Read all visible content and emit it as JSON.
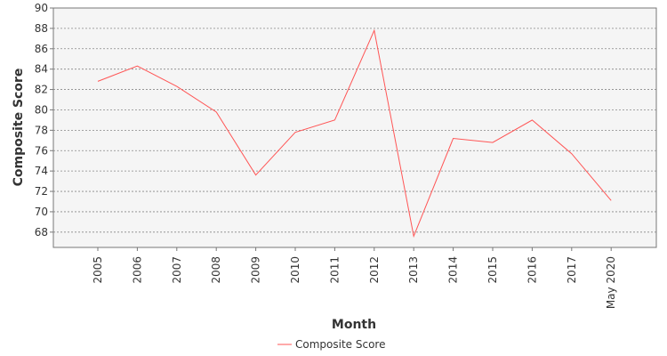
{
  "chart_data": {
    "type": "line",
    "xlabel": "Month",
    "ylabel": "Composite Score",
    "categories": [
      "2005",
      "2006",
      "2007",
      "2008",
      "2009",
      "2010",
      "2011",
      "2012",
      "2013",
      "2014",
      "2015",
      "2016",
      "2017",
      "May 2020"
    ],
    "series": [
      {
        "name": "Composite Score",
        "color": "#ff5555",
        "values": [
          82.8,
          84.3,
          82.3,
          79.8,
          73.6,
          77.8,
          79.0,
          87.8,
          67.6,
          77.2,
          76.8,
          79.0,
          75.7,
          71.1
        ]
      }
    ],
    "ylim": [
      66.5,
      90
    ],
    "yticks": [
      68,
      70,
      72,
      74,
      76,
      78,
      80,
      82,
      84,
      86,
      88,
      90
    ],
    "grid": true,
    "legend_position": "bottom"
  }
}
